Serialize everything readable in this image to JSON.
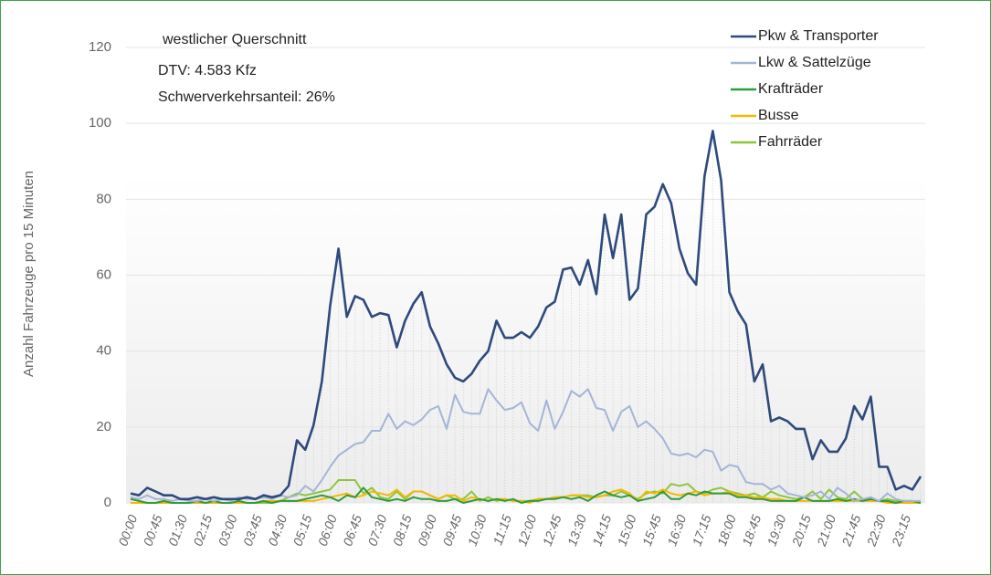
{
  "chart_data": {
    "type": "line",
    "annotations": [
      "westlicher Querschnitt",
      "DTV: 4.583 Kfz",
      "Schwerverkehrsanteil: 26%"
    ],
    "y_label": "Anzahl Fahrzeuge pro 15 Minuten",
    "categories": [
      "00:00",
      null,
      null,
      "00:45",
      null,
      null,
      "01:30",
      null,
      null,
      "02:15",
      null,
      null,
      "03:00",
      null,
      null,
      "03:45",
      null,
      null,
      "04:30",
      null,
      null,
      "05:15",
      null,
      null,
      "06:00",
      null,
      null,
      "06:45",
      null,
      null,
      "07:30",
      null,
      null,
      "08:15",
      null,
      null,
      "09:00",
      null,
      null,
      "09:45",
      null,
      null,
      "10:30",
      null,
      null,
      "11:15",
      null,
      null,
      "12:00",
      null,
      null,
      "12:45",
      null,
      null,
      "13:30",
      null,
      null,
      "14:15",
      null,
      null,
      "15:00",
      null,
      null,
      "15:45",
      null,
      null,
      "16:30",
      null,
      null,
      "17:15",
      null,
      null,
      "18:00",
      null,
      null,
      "18:45",
      null,
      null,
      "19:30",
      null,
      null,
      "20:15",
      null,
      null,
      "21:00",
      null,
      null,
      "21:45",
      null,
      null,
      "22:30",
      null,
      null,
      "23:15",
      null,
      null
    ],
    "series": [
      {
        "name": "Pkw & Transporter",
        "color": "#2e4a7d",
        "values": [
          2.5,
          2,
          4,
          3,
          2,
          2,
          1,
          1,
          1.5,
          1,
          1.5,
          1,
          1,
          1,
          1.5,
          1,
          2,
          1.5,
          2,
          4.5,
          16.5,
          14,
          20.5,
          32,
          52,
          67,
          49,
          54.5,
          53.5,
          49,
          50,
          49.5,
          41,
          48,
          52.5,
          55.5,
          46.5,
          42,
          36.5,
          33,
          32,
          34,
          37.5,
          40,
          48,
          43.5,
          43.5,
          45,
          43.5,
          46.5,
          51.5,
          53,
          61.5,
          62,
          57.5,
          64,
          55,
          76,
          64.5,
          76,
          53.5,
          56.5,
          76,
          78,
          84,
          79,
          67,
          60.5,
          57.5,
          86,
          98,
          85,
          55.5,
          50.5,
          47,
          32,
          36.5,
          21.5,
          22.5,
          21.5,
          19.5,
          19.5,
          11.5,
          16.5,
          13.5,
          13.5,
          17,
          25.5,
          22,
          28,
          9.5,
          9.5,
          3.5,
          4.5,
          3.5,
          7
        ]
      },
      {
        "name": "Lkw & Sattelzüge",
        "color": "#a4b5d9",
        "values": [
          1.5,
          1,
          2,
          1,
          1,
          0.5,
          1,
          0.5,
          0.5,
          1,
          0.5,
          1,
          0.5,
          1.5,
          1,
          1,
          1.5,
          1,
          2,
          1.5,
          2,
          4.5,
          3,
          6,
          9.5,
          12.5,
          14,
          15.5,
          16,
          19,
          19,
          23.5,
          19.5,
          21.5,
          20.5,
          22,
          24.5,
          25.5,
          19.5,
          28.5,
          24,
          23.5,
          23.5,
          30,
          27,
          24.5,
          25,
          26.5,
          21,
          19,
          27,
          19.5,
          24,
          29.5,
          28,
          30,
          25,
          24.5,
          19,
          24,
          25.5,
          20,
          21.5,
          19.5,
          17,
          13,
          12.5,
          13,
          12,
          14,
          13.5,
          8.5,
          10,
          9.5,
          5.5,
          5,
          5,
          3.5,
          4.5,
          2.5,
          2,
          1.5,
          2,
          3,
          1,
          4,
          2.5,
          0.5,
          1,
          1.5,
          0.5,
          2.5,
          1,
          0.5,
          0.5,
          0.5
        ]
      },
      {
        "name": "Krafträder",
        "color": "#2e9a3a",
        "values": [
          1,
          0.5,
          0,
          0,
          0.5,
          0,
          0,
          0,
          0.5,
          0,
          0.5,
          0,
          0,
          0.5,
          0,
          0,
          0.5,
          0,
          0.5,
          0.5,
          0.5,
          1,
          1.5,
          2,
          1.5,
          0.5,
          2,
          1.5,
          4,
          1.5,
          1,
          0.5,
          1,
          0.5,
          1.5,
          1,
          1,
          0.5,
          0.5,
          1,
          0,
          0.5,
          1,
          0.5,
          1,
          0.5,
          1,
          0,
          0.5,
          0.5,
          1,
          1,
          1.5,
          1,
          1.5,
          0.5,
          2,
          3,
          2,
          1.5,
          2,
          0.5,
          1,
          1.5,
          3,
          1,
          1,
          2.5,
          2,
          3,
          2.5,
          2.5,
          2.5,
          1.5,
          1.5,
          1,
          1,
          0.5,
          0.5,
          0.5,
          0.5,
          1.5,
          0.5,
          0.5,
          0.5,
          1,
          0.5,
          1,
          0.5,
          1,
          0.5,
          0.5,
          0,
          0.5,
          0.5,
          0
        ]
      },
      {
        "name": "Busse",
        "color": "#f5b800",
        "values": [
          0,
          0,
          0,
          0,
          0,
          0,
          0,
          0,
          0,
          0,
          0,
          0,
          0,
          0,
          0,
          0,
          0.5,
          0.5,
          0.5,
          0.5,
          0.5,
          0.5,
          0.5,
          1,
          1.5,
          2,
          2.5,
          1.5,
          2,
          3,
          2.5,
          2,
          3.5,
          1.5,
          3,
          3,
          2,
          1,
          2,
          2,
          0.5,
          1.5,
          1,
          0.5,
          1,
          1,
          0.5,
          0.5,
          0,
          1,
          1,
          1.5,
          1.5,
          2,
          2,
          1.5,
          1.5,
          2,
          3,
          3.5,
          2.5,
          0.5,
          3,
          2.5,
          3.5,
          2.5,
          2,
          2.5,
          3,
          2,
          2.5,
          2.5,
          3,
          2,
          2,
          1.5,
          1.5,
          1,
          1,
          0.5,
          0.5,
          0.5,
          0.5,
          0.5,
          0.5,
          0.5,
          0.5,
          0.5,
          0.5,
          0.5,
          0.5,
          0,
          0,
          0,
          0,
          0
        ]
      },
      {
        "name": "Fahrräder",
        "color": "#8cc63f",
        "values": [
          0,
          0,
          0,
          0,
          0,
          0,
          0,
          0,
          0,
          0,
          0,
          0,
          0,
          0,
          0,
          0,
          0,
          0,
          0.5,
          1.5,
          2.5,
          2,
          2.5,
          3,
          3.5,
          6,
          6,
          6,
          2.5,
          4,
          1.5,
          1,
          3,
          1,
          3,
          3,
          2,
          1,
          2,
          1,
          1,
          3,
          0.5,
          1.5,
          0.5,
          1,
          0.5,
          0.5,
          0.5,
          1,
          1,
          1.5,
          1.5,
          2,
          2,
          2,
          1.5,
          2,
          2,
          3,
          2,
          1,
          2.5,
          3,
          2.5,
          5,
          4.5,
          5,
          3,
          2.5,
          3.5,
          4,
          3,
          2.5,
          2,
          2.5,
          1.5,
          3,
          2,
          1.5,
          1,
          1.5,
          3,
          1,
          3.5,
          1.5,
          1,
          3,
          1,
          1,
          0.5,
          1,
          0.5,
          0.5,
          0,
          0.5
        ]
      }
    ],
    "ylim": [
      0,
      120
    ],
    "yticks": [
      0,
      20,
      40,
      60,
      80,
      100,
      120
    ],
    "legend": "top-right",
    "drop_lines": true
  }
}
